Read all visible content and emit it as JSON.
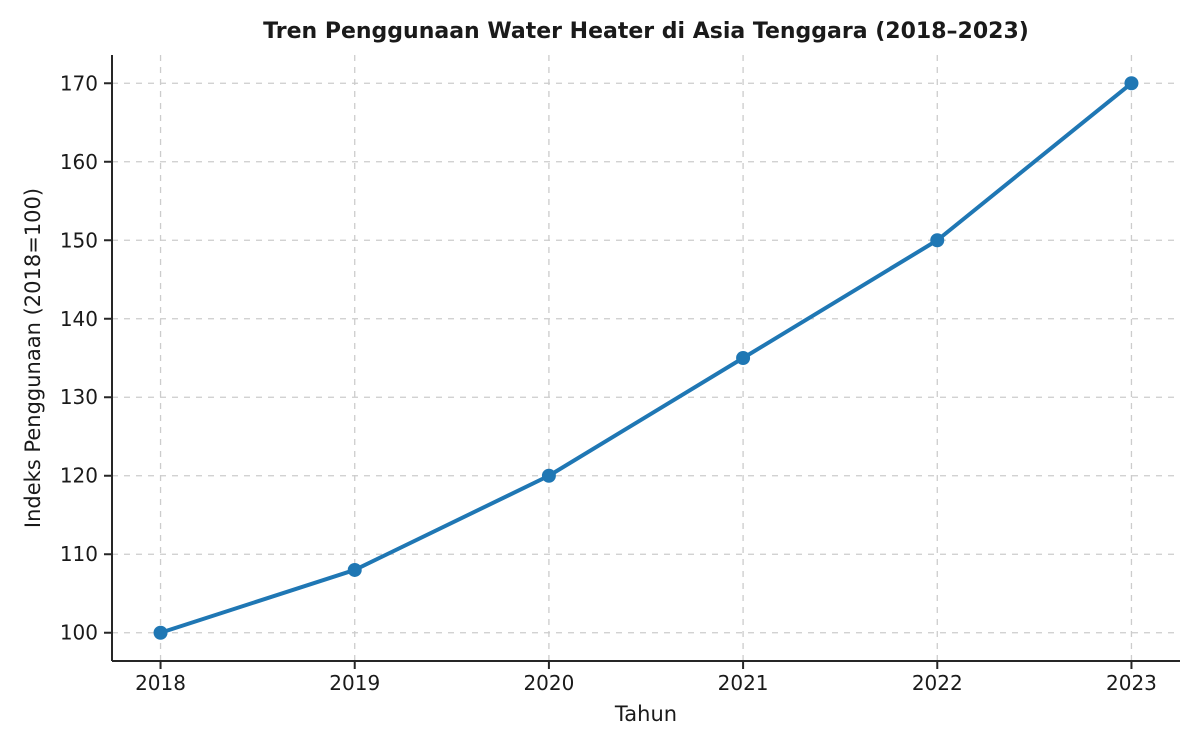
{
  "chart_data": {
    "type": "line",
    "title": "Tren Penggunaan Water Heater di Asia Tenggara (2018–2023)",
    "xlabel": "Tahun",
    "ylabel": "Indeks Penggunaan (2018=100)",
    "x": [
      2018,
      2019,
      2020,
      2021,
      2022,
      2023
    ],
    "values": [
      100,
      108,
      120,
      135,
      150,
      170
    ],
    "xticks": [
      2018,
      2019,
      2020,
      2021,
      2022,
      2023
    ],
    "yticks": [
      100,
      110,
      120,
      130,
      140,
      150,
      160,
      170
    ],
    "xlim": [
      2017.75,
      2023.25
    ],
    "ylim": [
      96.4,
      173.6
    ],
    "grid": true,
    "grid_style": "dashed",
    "legend": "none",
    "markers": true,
    "marker_radius": 7,
    "line_width": 4,
    "colors": {
      "line": "#1f77b4",
      "marker": "#1f77b4",
      "grid": "#cccccc",
      "spine": "#262626",
      "text": "#1a1a1a",
      "background": "#ffffff"
    }
  }
}
